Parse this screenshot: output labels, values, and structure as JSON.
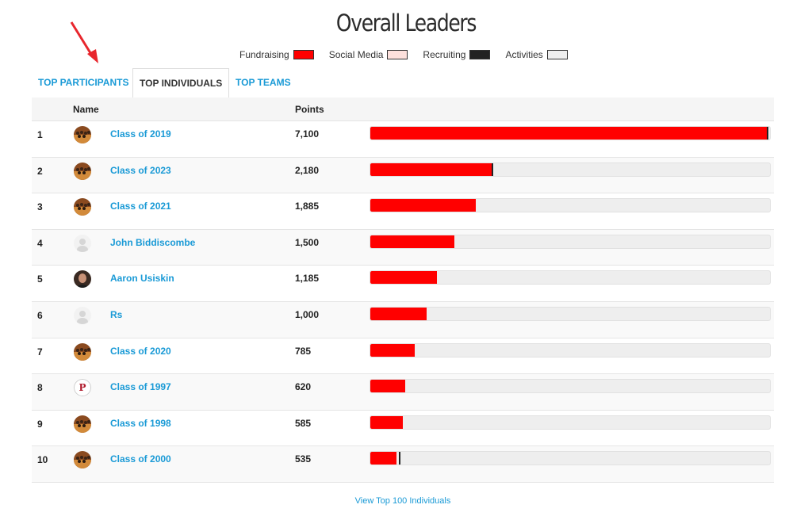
{
  "title": "Overall Leaders",
  "legend": [
    {
      "label": "Fundraising",
      "color": "#ff0000"
    },
    {
      "label": "Social Media",
      "color": "#fde0dc"
    },
    {
      "label": "Recruiting",
      "color": "#222222"
    },
    {
      "label": "Activities",
      "color": "#eeeeee"
    }
  ],
  "tabs": [
    {
      "label": "TOP PARTICIPANTS",
      "active": false
    },
    {
      "label": "TOP INDIVIDUALS",
      "active": true
    },
    {
      "label": "TOP TEAMS",
      "active": false
    }
  ],
  "table": {
    "headers": {
      "name": "Name",
      "points": "Points"
    },
    "max_points": 7100,
    "rows": [
      {
        "rank": "1",
        "name": "Class of 2019",
        "points": "7,100",
        "fundraising": 7075,
        "recruiting": 25,
        "avatar": "group-photo-icon"
      },
      {
        "rank": "2",
        "name": "Class of 2023",
        "points": "2,180",
        "fundraising": 2165,
        "recruiting": 15,
        "avatar": "group-photo-icon"
      },
      {
        "rank": "3",
        "name": "Class of 2021",
        "points": "1,885",
        "fundraising": 1885,
        "recruiting": 0,
        "avatar": "group-photo-icon"
      },
      {
        "rank": "4",
        "name": "John Biddiscombe",
        "points": "1,500",
        "fundraising": 1500,
        "recruiting": 0,
        "avatar": "default-user-icon"
      },
      {
        "rank": "5",
        "name": "Aaron Usiskin",
        "points": "1,185",
        "fundraising": 1185,
        "recruiting": 0,
        "avatar": "person-photo-icon"
      },
      {
        "rank": "6",
        "name": "Rs",
        "points": "1,000",
        "fundraising": 1000,
        "recruiting": 0,
        "avatar": "default-user-icon"
      },
      {
        "rank": "7",
        "name": "Class of 2020",
        "points": "785",
        "fundraising": 785,
        "recruiting": 0,
        "avatar": "group-photo-icon"
      },
      {
        "rank": "8",
        "name": "Class of 1997",
        "points": "620",
        "fundraising": 620,
        "recruiting": 0,
        "avatar": "logo-p-icon"
      },
      {
        "rank": "9",
        "name": "Class of 1998",
        "points": "585",
        "fundraising": 585,
        "recruiting": 0,
        "avatar": "group-photo-icon"
      },
      {
        "rank": "10",
        "name": "Class of 2000",
        "points": "535",
        "fundraising": 460,
        "recruiting": 75,
        "avatar": "group-photo-icon"
      }
    ]
  },
  "footer": {
    "link": "View Top 100 Individuals"
  }
}
